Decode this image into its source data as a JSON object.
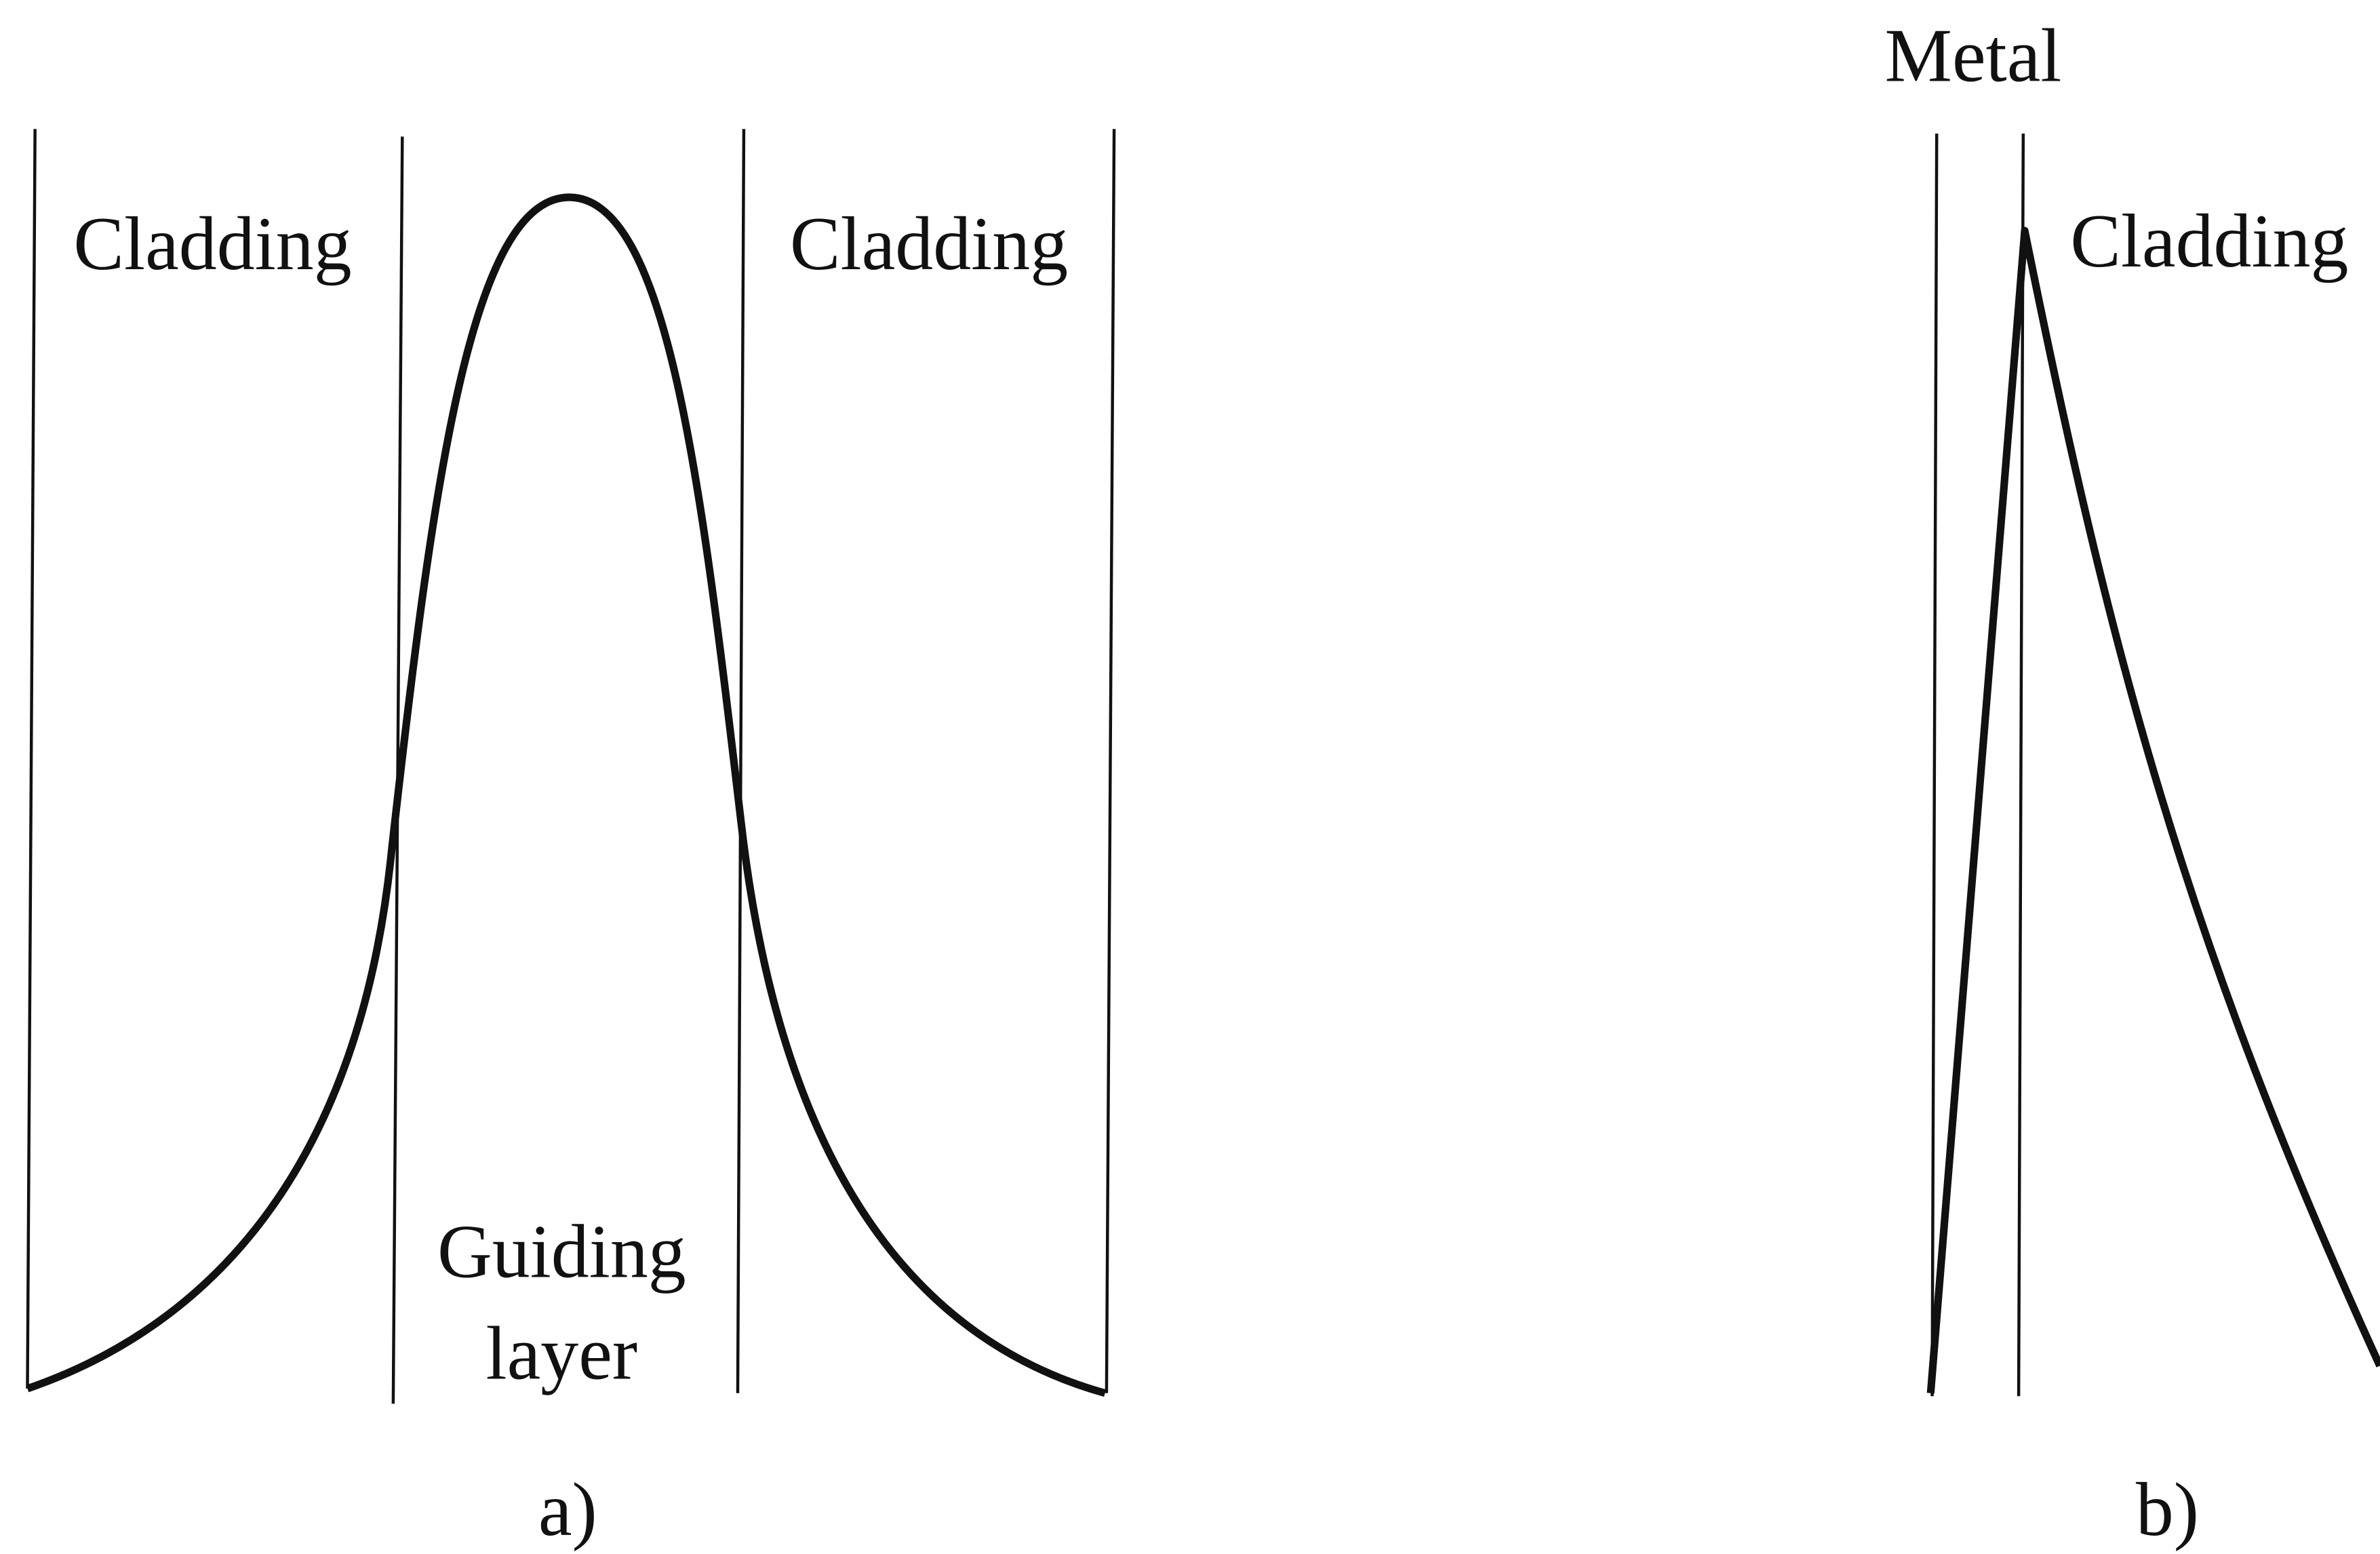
{
  "panel_a": {
    "caption": "a)",
    "left_region": "Cladding",
    "core_region": [
      "Guiding",
      "layer"
    ],
    "right_region": "Cladding"
  },
  "panel_b": {
    "caption": "b)",
    "metal_label": "Metal",
    "cladding_label": "Cladding"
  }
}
